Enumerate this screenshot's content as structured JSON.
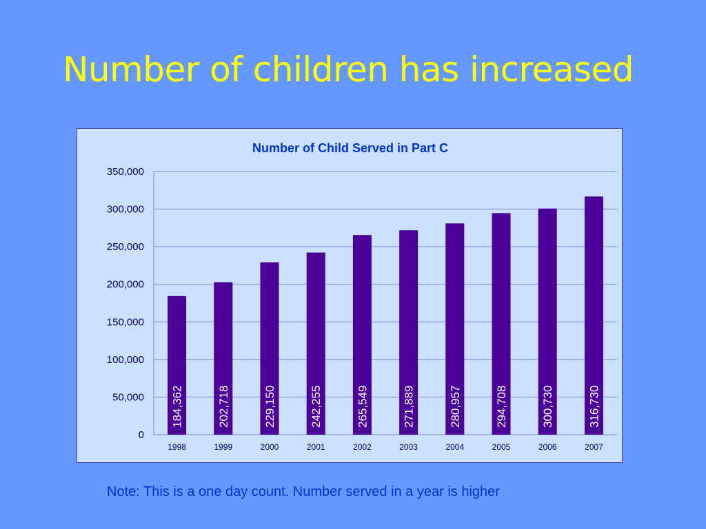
{
  "slide": {
    "title": "Number of children has increased",
    "note": "Note:  This is a one day count. Number served in a year is higher"
  },
  "colors": {
    "background": "#6699ff",
    "title": "#ffff00",
    "plot_area": "#cce0ff",
    "bar": "#4b0096",
    "bar_label": "#ffffff",
    "chart_title": "#0033cc",
    "note": "#0033cc"
  },
  "chart_data": {
    "type": "bar",
    "title": "Number of Child Served in Part C",
    "xlabel": "",
    "ylabel": "",
    "categories": [
      "1998",
      "1999",
      "2000",
      "2001",
      "2002",
      "2003",
      "2004",
      "2005",
      "2006",
      "2007"
    ],
    "values": [
      184362,
      202718,
      229150,
      242255,
      265549,
      271889,
      280957,
      294708,
      300730,
      316730
    ],
    "value_labels": [
      "184,362",
      "202,718",
      "229,150",
      "242,255",
      "265,549",
      "271,889",
      "280,957",
      "294,708",
      "300,730",
      "316,730"
    ],
    "ylim": [
      0,
      350000
    ],
    "yticks": [
      0,
      50000,
      100000,
      150000,
      200000,
      250000,
      300000,
      350000
    ],
    "ytick_labels": [
      "0",
      "50,000",
      "100,000",
      "150,000",
      "200,000",
      "250,000",
      "300,000",
      "350,000"
    ],
    "grid": true,
    "legend": "none",
    "data_label_orientation": "vertical"
  }
}
